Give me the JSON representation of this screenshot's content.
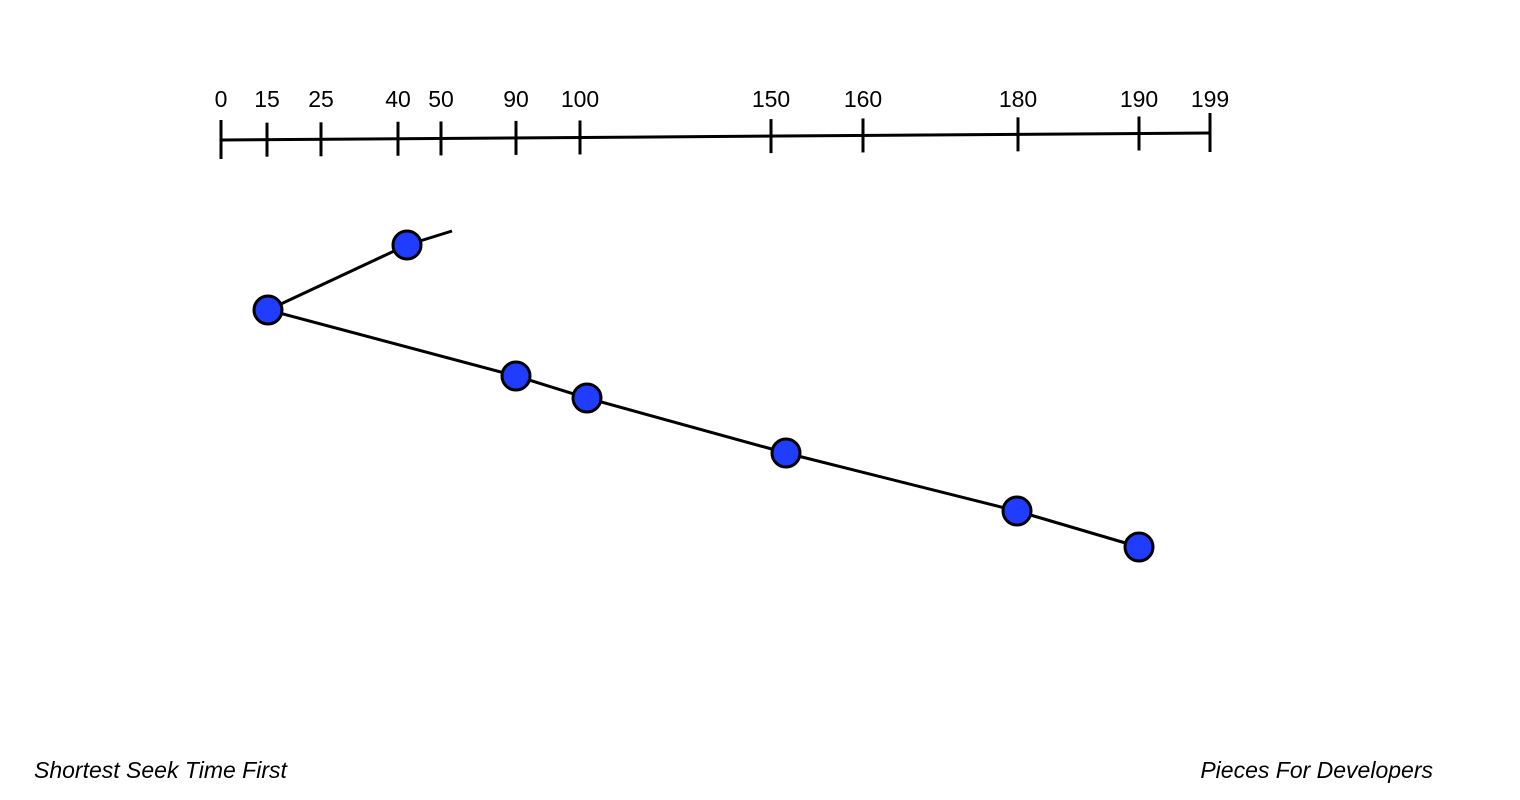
{
  "axis": {
    "ticks": [
      "0",
      "15",
      "25",
      "40",
      "50",
      "90",
      "100",
      "150",
      "160",
      "180",
      "190",
      "199"
    ]
  },
  "footer": {
    "left": "Shortest Seek Time First",
    "right": "Pieces For Developers"
  }
}
